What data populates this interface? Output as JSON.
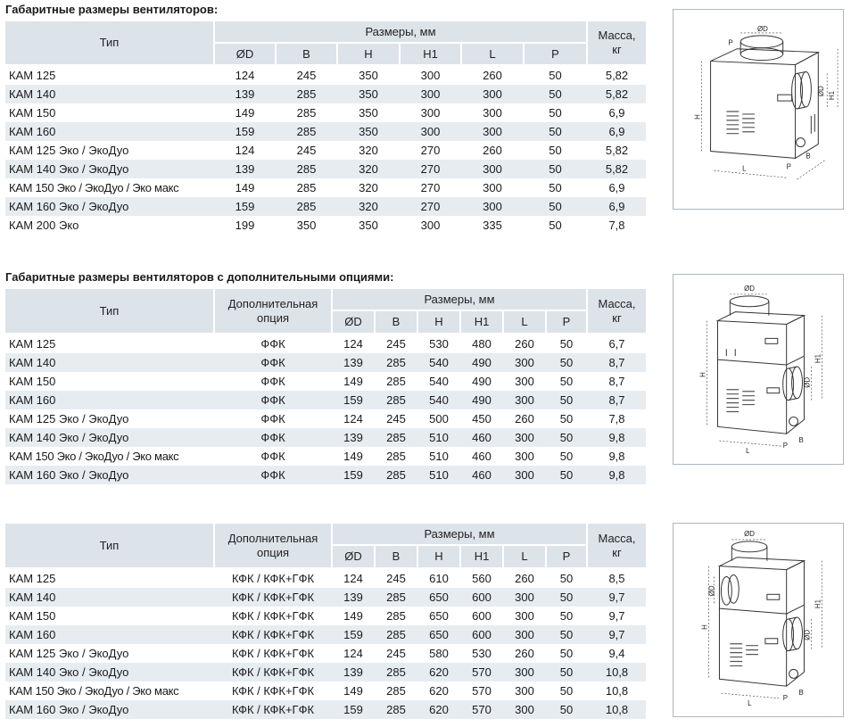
{
  "section1": {
    "title": "Габаритные размеры вентиляторов:",
    "header": {
      "type": "Тип",
      "dims": "Размеры, мм",
      "mass": "Масса, кг",
      "cols": [
        "ØD",
        "B",
        "H",
        "H1",
        "L",
        "P"
      ]
    },
    "rows": [
      {
        "type": "КАМ 125",
        "d": "124",
        "b": "245",
        "h": "350",
        "h1": "300",
        "l": "260",
        "p": "50",
        "mass": "5,82"
      },
      {
        "type": "КАМ 140",
        "d": "139",
        "b": "285",
        "h": "350",
        "h1": "300",
        "l": "300",
        "p": "50",
        "mass": "5,82"
      },
      {
        "type": "КАМ 150",
        "d": "149",
        "b": "285",
        "h": "350",
        "h1": "300",
        "l": "300",
        "p": "50",
        "mass": "6,9"
      },
      {
        "type": "КАМ 160",
        "d": "159",
        "b": "285",
        "h": "350",
        "h1": "300",
        "l": "300",
        "p": "50",
        "mass": "6,9"
      },
      {
        "type": "КАМ 125 Эко / ЭкоДуо",
        "d": "124",
        "b": "245",
        "h": "320",
        "h1": "270",
        "l": "260",
        "p": "50",
        "mass": "5,82"
      },
      {
        "type": "КАМ 140 Эко / ЭкоДуо",
        "d": "139",
        "b": "285",
        "h": "320",
        "h1": "270",
        "l": "300",
        "p": "50",
        "mass": "5,82"
      },
      {
        "type": "КАМ 150 Эко / ЭкоДуо / Эко макс",
        "d": "149",
        "b": "285",
        "h": "320",
        "h1": "270",
        "l": "300",
        "p": "50",
        "mass": "6,9"
      },
      {
        "type": "КАМ 160 Эко / ЭкоДуо",
        "d": "159",
        "b": "285",
        "h": "320",
        "h1": "270",
        "l": "300",
        "p": "50",
        "mass": "6,9"
      },
      {
        "type": "КАМ 200 Эко",
        "d": "199",
        "b": "350",
        "h": "350",
        "h1": "300",
        "l": "335",
        "p": "50",
        "mass": "7,8"
      }
    ]
  },
  "section2": {
    "title": "Габаритные размеры вентиляторов с дополнительными опциями:",
    "header": {
      "type": "Тип",
      "option": "Дополнительная опция",
      "dims": "Размеры, мм",
      "mass": "Масса, кг",
      "cols": [
        "ØD",
        "B",
        "H",
        "H1",
        "L",
        "P"
      ]
    },
    "rows": [
      {
        "type": "КАМ 125",
        "opt": "ФФК",
        "d": "124",
        "b": "245",
        "h": "530",
        "h1": "480",
        "l": "260",
        "p": "50",
        "mass": "6,7"
      },
      {
        "type": "КАМ 140",
        "opt": "ФФК",
        "d": "139",
        "b": "285",
        "h": "540",
        "h1": "490",
        "l": "300",
        "p": "50",
        "mass": "8,7"
      },
      {
        "type": "КАМ 150",
        "opt": "ФФК",
        "d": "149",
        "b": "285",
        "h": "540",
        "h1": "490",
        "l": "300",
        "p": "50",
        "mass": "8,7"
      },
      {
        "type": "КАМ 160",
        "opt": "ФФК",
        "d": "159",
        "b": "285",
        "h": "540",
        "h1": "490",
        "l": "300",
        "p": "50",
        "mass": "8,7"
      },
      {
        "type": "КАМ 125 Эко / ЭкоДуо",
        "opt": "ФФК",
        "d": "124",
        "b": "245",
        "h": "500",
        "h1": "450",
        "l": "260",
        "p": "50",
        "mass": "7,8"
      },
      {
        "type": "КАМ 140 Эко / ЭкоДуо",
        "opt": "ФФК",
        "d": "139",
        "b": "285",
        "h": "510",
        "h1": "460",
        "l": "300",
        "p": "50",
        "mass": "9,8"
      },
      {
        "type": "КАМ 150 Эко / ЭкоДуо / Эко макс",
        "opt": "ФФК",
        "d": "149",
        "b": "285",
        "h": "510",
        "h1": "460",
        "l": "300",
        "p": "50",
        "mass": "9,8"
      },
      {
        "type": "КАМ 160 Эко / ЭкоДуо",
        "opt": "ФФК",
        "d": "159",
        "b": "285",
        "h": "510",
        "h1": "460",
        "l": "300",
        "p": "50",
        "mass": "9,8"
      }
    ]
  },
  "section3": {
    "header": {
      "type": "Тип",
      "option": "Дополнительная опция",
      "dims": "Размеры, мм",
      "mass": "Масса, кг",
      "cols": [
        "ØD",
        "B",
        "H",
        "H1",
        "L",
        "P"
      ]
    },
    "rows": [
      {
        "type": "КАМ 125",
        "opt": "КФК / КФК+ГФК",
        "d": "124",
        "b": "245",
        "h": "610",
        "h1": "560",
        "l": "260",
        "p": "50",
        "mass": "8,5"
      },
      {
        "type": "КАМ 140",
        "opt": "КФК / КФК+ГФК",
        "d": "139",
        "b": "285",
        "h": "650",
        "h1": "600",
        "l": "300",
        "p": "50",
        "mass": "9,7"
      },
      {
        "type": "КАМ 150",
        "opt": "КФК / КФК+ГФК",
        "d": "149",
        "b": "285",
        "h": "650",
        "h1": "600",
        "l": "300",
        "p": "50",
        "mass": "9,7"
      },
      {
        "type": "КАМ 160",
        "opt": "КФК / КФК+ГФК",
        "d": "159",
        "b": "285",
        "h": "650",
        "h1": "600",
        "l": "300",
        "p": "50",
        "mass": "9,7"
      },
      {
        "type": "КАМ 125 Эко / ЭкоДуо",
        "opt": "КФК / КФК+ГФК",
        "d": "124",
        "b": "245",
        "h": "580",
        "h1": "530",
        "l": "260",
        "p": "50",
        "mass": "9,4"
      },
      {
        "type": "КАМ 140 Эко / ЭкоДуо",
        "opt": "КФК / КФК+ГФК",
        "d": "139",
        "b": "285",
        "h": "620",
        "h1": "570",
        "l": "300",
        "p": "50",
        "mass": "10,8"
      },
      {
        "type": "КАМ 150 Эко / ЭкоДуо / Эко макс",
        "opt": "КФК / КФК+ГФК",
        "d": "149",
        "b": "285",
        "h": "620",
        "h1": "570",
        "l": "300",
        "p": "50",
        "mass": "10,8"
      },
      {
        "type": "КАМ 160 Эко / ЭкоДуо",
        "opt": "КФК / КФК+ГФК",
        "d": "159",
        "b": "285",
        "h": "620",
        "h1": "570",
        "l": "300",
        "p": "50",
        "mass": "10,8"
      }
    ]
  },
  "figures": {
    "labels": {
      "d": "ØD",
      "h": "H",
      "h1": "H1",
      "b": "B",
      "l": "L",
      "p": "P"
    }
  },
  "colors": {
    "header_bg": "#dce3e9",
    "alt_row_bg": "#e7ecf1"
  }
}
